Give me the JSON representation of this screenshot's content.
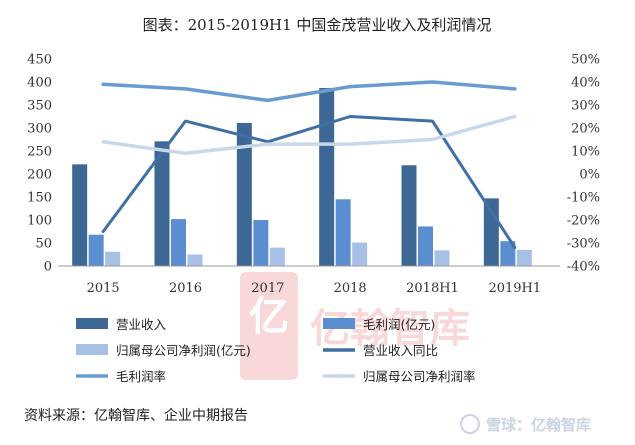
{
  "chart_data": {
    "type": "bar",
    "title": "图表：2015-2019H1 中国金茂营业收入及利润情况",
    "categories": [
      "2015",
      "2016",
      "2017",
      "2018",
      "2018H1",
      "2019H1"
    ],
    "y_left": {
      "lim": [
        0,
        450
      ],
      "ticks": [
        "0",
        "50",
        "100",
        "150",
        "200",
        "250",
        "300",
        "350",
        "400",
        "450"
      ]
    },
    "y_right": {
      "lim": [
        -40,
        50
      ],
      "ticks": [
        "50%",
        "40%",
        "30%",
        "20%",
        "10%",
        "0%",
        "-10%",
        "-20%",
        "-30%",
        "-40%"
      ]
    },
    "bar_series": [
      {
        "name": "营业收入",
        "color": "#3d6895",
        "values": [
          221,
          271,
          311,
          387,
          219,
          147
        ]
      },
      {
        "name": "毛利润(亿元)",
        "color": "#5b8ed0",
        "values": [
          68,
          102,
          100,
          145,
          86,
          54
        ]
      },
      {
        "name": "归属母公司净利润(亿元)",
        "color": "#a8c0e6",
        "values": [
          31,
          25,
          40,
          51,
          34,
          35
        ]
      }
    ],
    "line_series": [
      {
        "name": "营业收入同比",
        "color": "#3f6fa6",
        "axis": "right",
        "values": [
          -25,
          23,
          14,
          25,
          23,
          -32
        ]
      },
      {
        "name": "毛利润率",
        "color": "#6a9bd0",
        "axis": "right",
        "values": [
          39,
          37,
          32,
          38,
          40,
          37
        ]
      },
      {
        "name": "归属母公司净利润率",
        "color": "#c9d7ea",
        "axis": "right",
        "values": [
          14,
          9,
          13,
          13,
          15,
          25
        ]
      }
    ],
    "grid": false,
    "legend_position": "bottom"
  },
  "source_text": "资料来源：亿翰智库、企业中期报告",
  "watermark": {
    "logo_char": "亿",
    "brand": "亿翰智库",
    "corner": "雪球：亿翰智库"
  }
}
